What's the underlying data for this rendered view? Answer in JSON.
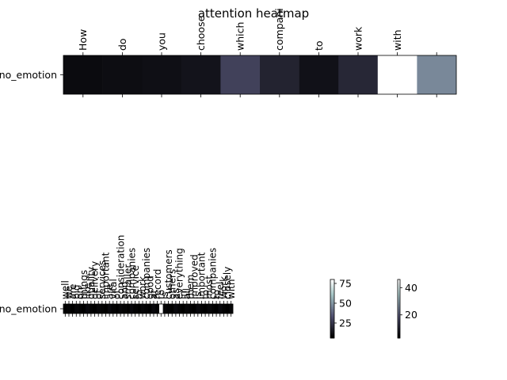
{
  "chart_data": [
    {
      "type": "heatmap",
      "title": "attention heatmap",
      "row_labels": [
        "no_emotion"
      ],
      "x_tick_labels": [
        "How",
        "do",
        "you",
        "choose",
        "which",
        "compani",
        "to",
        "work",
        "with",
        ""
      ],
      "values": [
        [
          5,
          6,
          7,
          9,
          30,
          16,
          8,
          18,
          100,
          55
        ]
      ],
      "colormap": "bone",
      "vmin": 0,
      "vmax": 100
    },
    {
      "type": "heatmap",
      "row_labels": [
        "no_emotion"
      ],
      "x_tick_labels": [
        "well",
        "we",
        "are",
        "big",
        "on",
        "things",
        "like",
        "quality",
        "delivery",
        "of",
        "services",
        "important",
        "are",
        "vital",
        "of",
        "consideration",
        "and",
        "smaller",
        "companies",
        "service",
        "to",
        "work",
        "companies",
        "good",
        "at",
        "record",
        "to",
        "is",
        "customers",
        "others",
        "as",
        "everything",
        "in",
        "all",
        "them",
        "improved",
        "is",
        "important",
        "to",
        "most",
        "companies",
        "to",
        "feel",
        "work",
        "closely",
        "with"
      ],
      "values": [
        [
          2,
          3,
          2,
          4,
          3,
          2,
          5,
          3,
          2,
          4,
          3,
          2,
          5,
          3,
          2,
          4,
          3,
          2,
          5,
          3,
          2,
          4,
          3,
          2,
          5,
          3,
          80,
          4,
          3,
          2,
          5,
          3,
          2,
          4,
          3,
          2,
          5,
          3,
          2,
          4,
          3,
          2,
          5,
          3,
          2,
          4
        ]
      ],
      "colormap": "bone"
    }
  ],
  "colorbars": [
    {
      "ticks": [
        25,
        50,
        75
      ],
      "range": [
        6,
        80
      ]
    },
    {
      "ticks": [
        20,
        40
      ],
      "range": [
        3,
        46
      ]
    }
  ]
}
